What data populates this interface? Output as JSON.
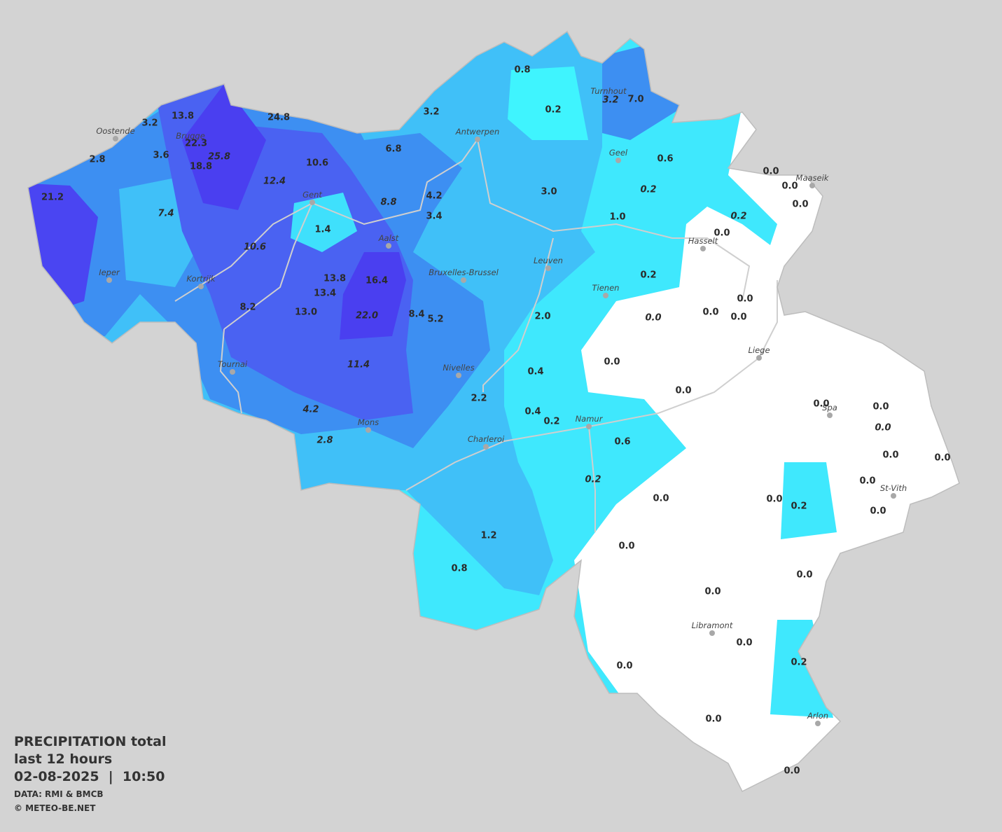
{
  "legend": {
    "title": "PRECIPITATION total",
    "period": "last 12 hours",
    "datetime": "02-08-2025  |  10:50",
    "source": "DATA: RMI & BMCB",
    "copyright": "© METEO-BE.NET"
  },
  "cities": [
    {
      "name": "Turnhout"
    },
    {
      "name": "Oostende"
    },
    {
      "name": "Brugge"
    },
    {
      "name": "Antwerpen"
    },
    {
      "name": "Geel"
    },
    {
      "name": "Maaseik"
    },
    {
      "name": "Gent"
    },
    {
      "name": "Hasselt"
    },
    {
      "name": "Aalst"
    },
    {
      "name": "Leuven"
    },
    {
      "name": "Ieper"
    },
    {
      "name": "Bruxelles-Brussel"
    },
    {
      "name": "Kortrijk"
    },
    {
      "name": "Tienen"
    },
    {
      "name": "Liege"
    },
    {
      "name": "Tournai"
    },
    {
      "name": "Nivelles"
    },
    {
      "name": "Spa"
    },
    {
      "name": "Namur"
    },
    {
      "name": "Mons"
    },
    {
      "name": "Charleroi"
    },
    {
      "name": "St-Vith"
    },
    {
      "name": "Libramont"
    },
    {
      "name": "Arlon"
    }
  ],
  "values": [
    {
      "text": "0.8",
      "italic": false
    },
    {
      "text": "0.2",
      "italic": false
    },
    {
      "text": "3.2",
      "italic": true
    },
    {
      "text": "7.0",
      "italic": false
    },
    {
      "text": "13.8",
      "italic": false
    },
    {
      "text": "24.8",
      "italic": false
    },
    {
      "text": "3.2",
      "italic": false
    },
    {
      "text": "3.2",
      "italic": false
    },
    {
      "text": "22.3",
      "italic": false
    },
    {
      "text": "25.8",
      "italic": true
    },
    {
      "text": "18.8",
      "italic": false
    },
    {
      "text": "3.6",
      "italic": false
    },
    {
      "text": "2.8",
      "italic": false
    },
    {
      "text": "10.6",
      "italic": false
    },
    {
      "text": "6.8",
      "italic": false
    },
    {
      "text": "0.6",
      "italic": false
    },
    {
      "text": "0.0",
      "italic": false
    },
    {
      "text": "0.0",
      "italic": false
    },
    {
      "text": "0.0",
      "italic": false
    },
    {
      "text": "21.2",
      "italic": false
    },
    {
      "text": "12.4",
      "italic": true
    },
    {
      "text": "4.2",
      "italic": false
    },
    {
      "text": "3.0",
      "italic": false
    },
    {
      "text": "0.2",
      "italic": true
    },
    {
      "text": "8.8",
      "italic": true
    },
    {
      "text": "3.4",
      "italic": false
    },
    {
      "text": "1.0",
      "italic": false
    },
    {
      "text": "0.2",
      "italic": true
    },
    {
      "text": "0.0",
      "italic": false
    },
    {
      "text": "7.4",
      "italic": true
    },
    {
      "text": "1.4",
      "italic": false
    },
    {
      "text": "10.6",
      "italic": true
    },
    {
      "text": "13.8",
      "italic": false
    },
    {
      "text": "16.4",
      "italic": false
    },
    {
      "text": "0.2",
      "italic": false
    },
    {
      "text": "13.4",
      "italic": false
    },
    {
      "text": "0.0",
      "italic": false
    },
    {
      "text": "8.2",
      "italic": false
    },
    {
      "text": "13.0",
      "italic": false
    },
    {
      "text": "22.0",
      "italic": true
    },
    {
      "text": "8.4",
      "italic": false
    },
    {
      "text": "5.2",
      "italic": false
    },
    {
      "text": "2.0",
      "italic": false
    },
    {
      "text": "0.0",
      "italic": false
    },
    {
      "text": "0.0",
      "italic": false
    },
    {
      "text": "0.0",
      "italic": true
    },
    {
      "text": "11.4",
      "italic": true
    },
    {
      "text": "0.0",
      "italic": false
    },
    {
      "text": "0.4",
      "italic": false
    },
    {
      "text": "0.0",
      "italic": false
    },
    {
      "text": "2.2",
      "italic": false
    },
    {
      "text": "4.2",
      "italic": true
    },
    {
      "text": "0.4",
      "italic": false
    },
    {
      "text": "0.2",
      "italic": false
    },
    {
      "text": "0.0",
      "italic": false
    },
    {
      "text": "0.0",
      "italic": false
    },
    {
      "text": "0.0",
      "italic": true
    },
    {
      "text": "2.8",
      "italic": true
    },
    {
      "text": "0.6",
      "italic": false
    },
    {
      "text": "0.0",
      "italic": false
    },
    {
      "text": "0.0",
      "italic": false
    },
    {
      "text": "0.2",
      "italic": true
    },
    {
      "text": "0.0",
      "italic": false
    },
    {
      "text": "0.0",
      "italic": false
    },
    {
      "text": "0.0",
      "italic": false
    },
    {
      "text": "0.2",
      "italic": false
    },
    {
      "text": "0.0",
      "italic": false
    },
    {
      "text": "1.2",
      "italic": false
    },
    {
      "text": "0.0",
      "italic": false
    },
    {
      "text": "0.8",
      "italic": false
    },
    {
      "text": "0.0",
      "italic": false
    },
    {
      "text": "0.0",
      "italic": false
    },
    {
      "text": "0.0",
      "italic": false
    },
    {
      "text": "0.2",
      "italic": false
    },
    {
      "text": "0.0",
      "italic": false
    },
    {
      "text": "0.0",
      "italic": false
    },
    {
      "text": "0.0",
      "italic": false
    }
  ]
}
